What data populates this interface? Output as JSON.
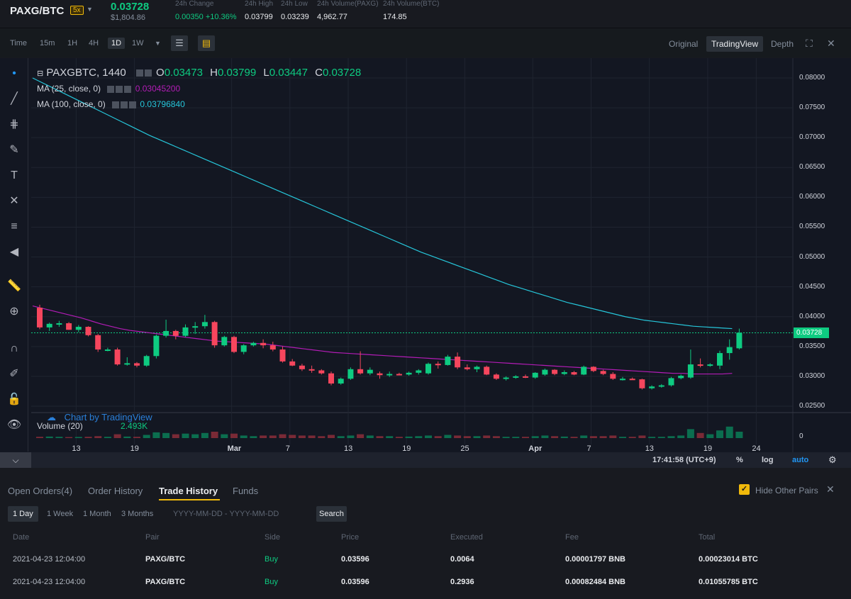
{
  "ticker": {
    "pair": "PAXG/BTC",
    "leverage": "5x",
    "last_price": "0.03728",
    "last_price_usd": "$1,804.86",
    "stats": [
      {
        "label": "24h Change",
        "value": "0.00350 +10.36%"
      },
      {
        "label": "24h High",
        "value": "0.03799"
      },
      {
        "label": "24h Low",
        "value": "0.03239"
      },
      {
        "label": "24h Volume(PAXG)",
        "value": "4,962.77"
      },
      {
        "label": "24h Volume(BTC)",
        "value": "174.85"
      }
    ]
  },
  "toolbar": {
    "intervals": [
      "Time",
      "15m",
      "1H",
      "4H",
      "1D",
      "1W"
    ],
    "active_interval": "1D",
    "views": [
      "Original",
      "TradingView",
      "Depth"
    ],
    "active_view": "TradingView"
  },
  "legend": {
    "symbol": "PAXGBTC, 1440",
    "o_label": "O",
    "o": "0.03473",
    "h_label": "H",
    "h": "0.03799",
    "l_label": "L",
    "l": "0.03447",
    "c_label": "C",
    "c": "0.03728",
    "ma25_label": "MA (25, close, 0)",
    "ma25_value": "0.03045200",
    "ma100_label": "MA (100, close, 0)",
    "ma100_value": "0.03796840",
    "volume_label": "Volume (20)",
    "volume_value": "2.493K",
    "watermark": "Chart by TradingView"
  },
  "price_tag": "0.03728",
  "time_bar": {
    "clock": "17:41:58 (UTC+9)",
    "percent": "%",
    "log": "log",
    "auto": "auto"
  },
  "colors": {
    "up": "#0ecb81",
    "down": "#f6465d",
    "ma25": "#b31cb6",
    "ma100": "#26c6da",
    "accent": "#f0b90b"
  },
  "chart_data": {
    "type": "candlestick",
    "symbol": "PAXGBTC",
    "y_ticks": [
      "0.08000",
      "0.07500",
      "0.07000",
      "0.06500",
      "0.06000",
      "0.05500",
      "0.05000",
      "0.04500",
      "0.04000",
      "0.03500",
      "0.03000",
      "0.02500"
    ],
    "ylim": [
      0.022,
      0.082
    ],
    "x_ticks": [
      {
        "label": "13",
        "i": 2
      },
      {
        "label": "19",
        "i": 8
      },
      {
        "label": "Mar",
        "i": 18
      },
      {
        "label": "7",
        "i": 24
      },
      {
        "label": "13",
        "i": 30
      },
      {
        "label": "19",
        "i": 36
      },
      {
        "label": "25",
        "i": 42
      },
      {
        "label": "Apr",
        "i": 49
      },
      {
        "label": "7",
        "i": 55
      },
      {
        "label": "13",
        "i": 61
      },
      {
        "label": "19",
        "i": 67
      },
      {
        "label": "24",
        "i": 72
      }
    ],
    "candles": [
      [
        0.0415,
        0.042,
        0.0379,
        0.0382
      ],
      [
        0.0382,
        0.039,
        0.0376,
        0.0388
      ],
      [
        0.0388,
        0.0393,
        0.0383,
        0.0389
      ],
      [
        0.0389,
        0.0391,
        0.0378,
        0.0378
      ],
      [
        0.0378,
        0.0386,
        0.0374,
        0.0383
      ],
      [
        0.0383,
        0.0384,
        0.0367,
        0.0369
      ],
      [
        0.0369,
        0.0371,
        0.0341,
        0.0345
      ],
      [
        0.0345,
        0.0348,
        0.0342,
        0.0345
      ],
      [
        0.0345,
        0.0348,
        0.0318,
        0.032
      ],
      [
        0.032,
        0.0332,
        0.0318,
        0.0322
      ],
      [
        0.0322,
        0.0324,
        0.0315,
        0.0318
      ],
      [
        0.0318,
        0.0336,
        0.0316,
        0.0334
      ],
      [
        0.0334,
        0.037,
        0.033,
        0.0368
      ],
      [
        0.0368,
        0.0395,
        0.0365,
        0.0376
      ],
      [
        0.0376,
        0.0378,
        0.0362,
        0.0368
      ],
      [
        0.0368,
        0.0387,
        0.0366,
        0.0382
      ],
      [
        0.0382,
        0.0391,
        0.0371,
        0.0384
      ],
      [
        0.0384,
        0.0403,
        0.038,
        0.0391
      ],
      [
        0.0391,
        0.0393,
        0.0348,
        0.0352
      ],
      [
        0.0352,
        0.0368,
        0.035,
        0.0366
      ],
      [
        0.0366,
        0.0368,
        0.0339,
        0.0341
      ],
      [
        0.0341,
        0.0354,
        0.0337,
        0.0352
      ],
      [
        0.0352,
        0.0358,
        0.035,
        0.0356
      ],
      [
        0.0356,
        0.0362,
        0.0347,
        0.0352
      ],
      [
        0.0352,
        0.0358,
        0.0342,
        0.0345
      ],
      [
        0.0345,
        0.035,
        0.0323,
        0.0325
      ],
      [
        0.0325,
        0.0329,
        0.0317,
        0.0318
      ],
      [
        0.0318,
        0.0321,
        0.0309,
        0.0312
      ],
      [
        0.0312,
        0.0318,
        0.0306,
        0.031
      ],
      [
        0.031,
        0.0312,
        0.0303,
        0.0305
      ],
      [
        0.0305,
        0.0308,
        0.0285,
        0.0288
      ],
      [
        0.0288,
        0.0298,
        0.0286,
        0.0296
      ],
      [
        0.0296,
        0.0315,
        0.0294,
        0.0312
      ],
      [
        0.0312,
        0.0342,
        0.0303,
        0.0305
      ],
      [
        0.0305,
        0.0315,
        0.0302,
        0.0311
      ],
      [
        0.0305,
        0.0308,
        0.0296,
        0.0302
      ],
      [
        0.0302,
        0.0308,
        0.0299,
        0.0304
      ],
      [
        0.0304,
        0.0306,
        0.0302,
        0.0303
      ],
      [
        0.0303,
        0.0308,
        0.0301,
        0.0306
      ],
      [
        0.0306,
        0.0312,
        0.0303,
        0.031
      ],
      [
        0.0305,
        0.0323,
        0.0303,
        0.0321
      ],
      [
        0.0321,
        0.0325,
        0.0313,
        0.0319
      ],
      [
        0.0319,
        0.0336,
        0.0318,
        0.0333
      ],
      [
        0.0333,
        0.034,
        0.0312,
        0.0315
      ],
      [
        0.0315,
        0.032,
        0.031,
        0.0312
      ],
      [
        0.0312,
        0.0318,
        0.0307,
        0.0316
      ],
      [
        0.0316,
        0.0318,
        0.0302,
        0.0303
      ],
      [
        0.0303,
        0.0305,
        0.0294,
        0.0296
      ],
      [
        0.0296,
        0.03,
        0.0293,
        0.0298
      ],
      [
        0.0298,
        0.0302,
        0.0296,
        0.03
      ],
      [
        0.03,
        0.0303,
        0.0297,
        0.0298
      ],
      [
        0.0298,
        0.0307,
        0.0296,
        0.0306
      ],
      [
        0.0303,
        0.0313,
        0.0301,
        0.0311
      ],
      [
        0.0311,
        0.0312,
        0.0302,
        0.0304
      ],
      [
        0.0304,
        0.031,
        0.0302,
        0.0307
      ],
      [
        0.0307,
        0.0309,
        0.0302,
        0.0303
      ],
      [
        0.0303,
        0.0318,
        0.0302,
        0.0316
      ],
      [
        0.0316,
        0.0317,
        0.0307,
        0.0309
      ],
      [
        0.0309,
        0.0311,
        0.0302,
        0.0304
      ],
      [
        0.0304,
        0.0307,
        0.0294,
        0.0296
      ],
      [
        0.0296,
        0.0299,
        0.0293,
        0.0296
      ],
      [
        0.0296,
        0.0298,
        0.0294,
        0.0295
      ],
      [
        0.0295,
        0.0296,
        0.0278,
        0.028
      ],
      [
        0.028,
        0.0285,
        0.0278,
        0.0283
      ],
      [
        0.0283,
        0.0287,
        0.0281,
        0.0285
      ],
      [
        0.0285,
        0.0299,
        0.0283,
        0.0297
      ],
      [
        0.0297,
        0.0303,
        0.0295,
        0.0301
      ],
      [
        0.0298,
        0.0345,
        0.0296,
        0.032
      ],
      [
        0.032,
        0.033,
        0.0315,
        0.0318
      ],
      [
        0.0318,
        0.0322,
        0.0316,
        0.032
      ],
      [
        0.0318,
        0.0343,
        0.0312,
        0.0339
      ],
      [
        0.0339,
        0.0362,
        0.0328,
        0.0349
      ],
      [
        0.0347,
        0.038,
        0.0345,
        0.0373
      ]
    ],
    "ma25": [
      0.0418,
      0.0414,
      0.041,
      0.0406,
      0.0402,
      0.0398,
      0.0393,
      0.0388,
      0.0384,
      0.038,
      0.0377,
      0.0375,
      0.0373,
      0.0371,
      0.0369,
      0.0367,
      0.0365,
      0.0363,
      0.0361,
      0.0359,
      0.0358,
      0.0357,
      0.0356,
      0.0355,
      0.0354,
      0.0352,
      0.035,
      0.0348,
      0.0346,
      0.0344,
      0.0342,
      0.034,
      0.0339,
      0.0338,
      0.0337,
      0.0336,
      0.0335,
      0.0334,
      0.0333,
      0.0332,
      0.0331,
      0.033,
      0.0329,
      0.0328,
      0.0327,
      0.0326,
      0.0325,
      0.0324,
      0.0323,
      0.0322,
      0.0321,
      0.032,
      0.0319,
      0.0318,
      0.0317,
      0.0316,
      0.0315,
      0.0314,
      0.0313,
      0.0312,
      0.0311,
      0.031,
      0.0309,
      0.0308,
      0.0307,
      0.0306,
      0.0305,
      0.0305,
      0.0304,
      0.0304,
      0.0304,
      0.0304,
      0.0305
    ],
    "ma100": [
      0.08,
      0.0792,
      0.0784,
      0.0776,
      0.0768,
      0.076,
      0.0752,
      0.0744,
      0.0736,
      0.0728,
      0.072,
      0.0712,
      0.0704,
      0.0697,
      0.069,
      0.0683,
      0.0676,
      0.0669,
      0.0662,
      0.0655,
      0.0648,
      0.0641,
      0.0634,
      0.0627,
      0.062,
      0.0613,
      0.0606,
      0.0599,
      0.0592,
      0.0585,
      0.0578,
      0.0571,
      0.0564,
      0.0557,
      0.055,
      0.0543,
      0.0536,
      0.0529,
      0.0522,
      0.0515,
      0.0508,
      0.0502,
      0.0496,
      0.049,
      0.0484,
      0.0478,
      0.0472,
      0.0466,
      0.046,
      0.0454,
      0.0449,
      0.0444,
      0.0439,
      0.0434,
      0.0429,
      0.0424,
      0.042,
      0.0416,
      0.0412,
      0.0408,
      0.0404,
      0.04,
      0.0397,
      0.0394,
      0.0392,
      0.039,
      0.0388,
      0.0386,
      0.0384,
      0.0383,
      0.0382,
      0.0381,
      0.038
    ],
    "volume_rel": [
      0.1,
      0.12,
      0.1,
      0.08,
      0.09,
      0.1,
      0.15,
      0.1,
      0.3,
      0.12,
      0.1,
      0.25,
      0.45,
      0.4,
      0.3,
      0.35,
      0.3,
      0.4,
      0.5,
      0.3,
      0.35,
      0.2,
      0.15,
      0.2,
      0.2,
      0.3,
      0.25,
      0.2,
      0.2,
      0.15,
      0.25,
      0.15,
      0.2,
      0.3,
      0.2,
      0.15,
      0.15,
      0.1,
      0.12,
      0.15,
      0.2,
      0.15,
      0.25,
      0.2,
      0.15,
      0.15,
      0.2,
      0.15,
      0.1,
      0.1,
      0.1,
      0.15,
      0.2,
      0.15,
      0.12,
      0.1,
      0.2,
      0.15,
      0.15,
      0.2,
      0.1,
      0.1,
      0.2,
      0.1,
      0.1,
      0.15,
      0.2,
      0.7,
      0.4,
      0.3,
      0.6,
      0.9,
      0.5
    ]
  },
  "panel": {
    "tabs": [
      "Open Orders(4)",
      "Order History",
      "Trade History",
      "Funds"
    ],
    "active_tab": "Trade History",
    "hide_other_pairs": "Hide Other Pairs",
    "ranges": [
      "1 Day",
      "1 Week",
      "1 Month",
      "3 Months"
    ],
    "active_range": "1 Day",
    "date_placeholder": "YYYY-MM-DD - YYYY-MM-DD",
    "search_label": "Search",
    "columns": [
      "Date",
      "Pair",
      "Side",
      "Price",
      "Executed",
      "Fee",
      "Total"
    ],
    "rows": [
      [
        "2021-04-23 12:04:00",
        "PAXG/BTC",
        "Buy",
        "0.03596",
        "0.0064",
        "0.00001797 BNB",
        "0.00023014 BTC"
      ],
      [
        "2021-04-23 12:04:00",
        "PAXG/BTC",
        "Buy",
        "0.03596",
        "0.2936",
        "0.00082484 BNB",
        "0.01055785 BTC"
      ]
    ]
  }
}
